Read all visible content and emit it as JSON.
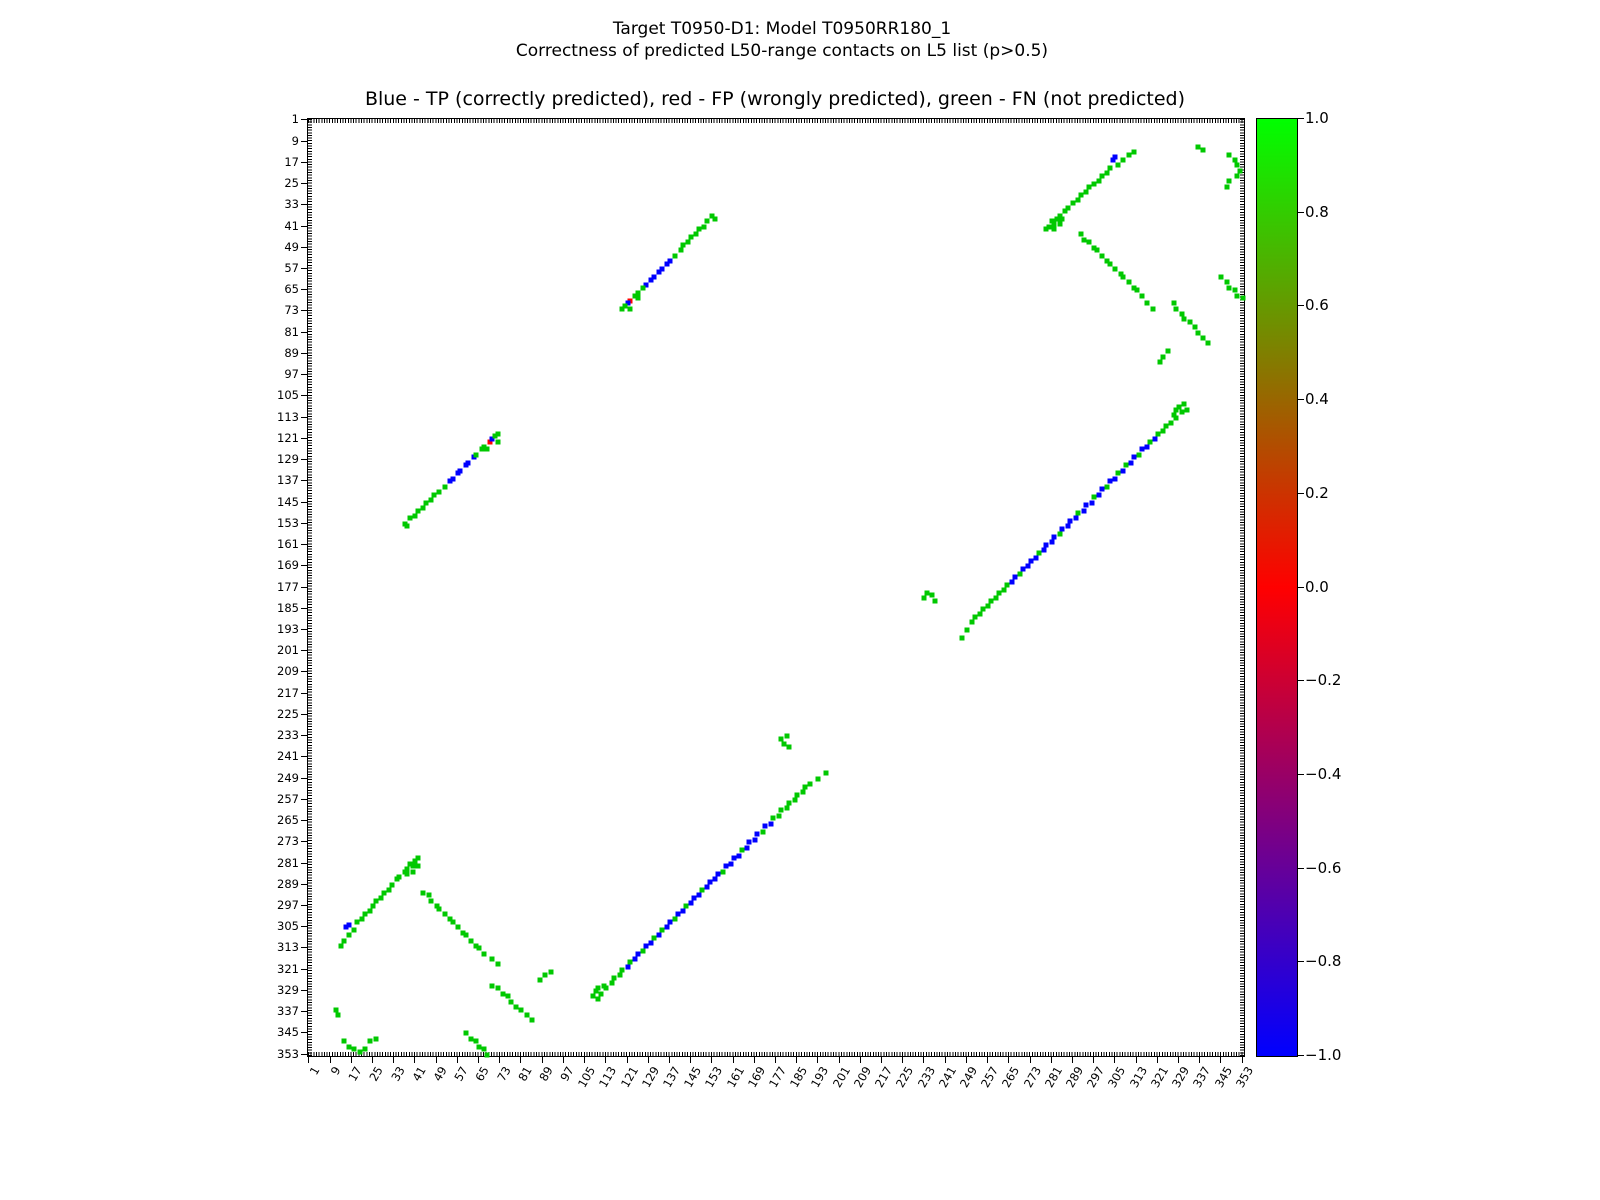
{
  "figure": {
    "suptitle_line1": "Target T0950-D1: Model T0950RR180_1",
    "suptitle_line2": "Correctness of predicted L50-range contacts on L5 list (p>0.5)",
    "axes_title": "Blue - TP (correctly predicted), red - FP (wrongly predicted), green - FN (not predicted)"
  },
  "chart_data": {
    "type": "scatter",
    "subtype": "contact_map",
    "title": "Blue - TP (correctly predicted), red - FP (wrongly predicted), green - FN (not predicted)",
    "xlabel": "",
    "ylabel": "",
    "x_range": [
      1,
      353
    ],
    "y_range": [
      1,
      353
    ],
    "y_inverted": true,
    "grid": false,
    "symmetric": true,
    "tick_values": [
      1,
      9,
      17,
      25,
      33,
      41,
      49,
      57,
      65,
      73,
      81,
      89,
      97,
      105,
      113,
      121,
      129,
      137,
      145,
      153,
      161,
      169,
      177,
      185,
      193,
      201,
      209,
      217,
      225,
      233,
      241,
      249,
      257,
      265,
      273,
      281,
      289,
      297,
      305,
      313,
      321,
      329,
      337,
      345,
      353
    ],
    "classes": {
      "TP": {
        "label": "TP (correctly predicted)",
        "color": "#0000ff"
      },
      "FP": {
        "label": "FP (wrongly predicted)",
        "color": "#ff0000"
      },
      "FN": {
        "label": "FN (not predicted)",
        "color": "#00c800"
      }
    },
    "colorbar": {
      "min": -1.0,
      "max": 1.0,
      "gradient_bottom": "#0000ff",
      "gradient_middle": "#ff0000",
      "gradient_top": "#00ff00",
      "tick_values": [
        1.0,
        0.8,
        0.6,
        0.4,
        0.2,
        0.0,
        -0.2,
        -0.4,
        -0.6,
        -0.8,
        -1.0
      ],
      "tick_labels": [
        "1.0",
        "0.8",
        "0.6",
        "0.4",
        "0.2",
        "0.0",
        "−0.2",
        "−0.4",
        "−0.6",
        "−0.8",
        "−1.0"
      ]
    },
    "points": [
      [
        37,
        153,
        "FN"
      ],
      [
        38,
        154,
        "FN"
      ],
      [
        39,
        151,
        "FN"
      ],
      [
        41,
        150,
        "FN"
      ],
      [
        42,
        148,
        "FN"
      ],
      [
        44,
        147,
        "FN"
      ],
      [
        45,
        145,
        "FN"
      ],
      [
        47,
        144,
        "FN"
      ],
      [
        48,
        142,
        "FN"
      ],
      [
        50,
        141,
        "FN"
      ],
      [
        52,
        139,
        "FN"
      ],
      [
        54,
        137,
        "TP"
      ],
      [
        55,
        136,
        "TP"
      ],
      [
        57,
        134,
        "TP"
      ],
      [
        58,
        133,
        "TP"
      ],
      [
        60,
        131,
        "TP"
      ],
      [
        61,
        130,
        "TP"
      ],
      [
        63,
        128,
        "TP"
      ],
      [
        64,
        127,
        "FN"
      ],
      [
        66,
        125,
        "FN"
      ],
      [
        67,
        124,
        "FN"
      ],
      [
        68,
        125,
        "FN"
      ],
      [
        69,
        122,
        "FP"
      ],
      [
        70,
        121,
        "TP"
      ],
      [
        71,
        120,
        "FN"
      ],
      [
        72,
        119,
        "FN"
      ],
      [
        72,
        122,
        "FN"
      ],
      [
        11,
        336,
        "FN"
      ],
      [
        12,
        338,
        "FN"
      ],
      [
        14,
        348,
        "FN"
      ],
      [
        16,
        350,
        "FN"
      ],
      [
        18,
        351,
        "FN"
      ],
      [
        20,
        352,
        "FN"
      ],
      [
        22,
        351,
        "FN"
      ],
      [
        24,
        348,
        "FN"
      ],
      [
        26,
        347,
        "FN"
      ],
      [
        13,
        312,
        "FN"
      ],
      [
        14,
        310,
        "FN"
      ],
      [
        15,
        305,
        "TP"
      ],
      [
        16,
        304,
        "TP"
      ],
      [
        16,
        308,
        "FN"
      ],
      [
        18,
        306,
        "FN"
      ],
      [
        19,
        303,
        "FN"
      ],
      [
        21,
        302,
        "FN"
      ],
      [
        22,
        300,
        "FN"
      ],
      [
        24,
        299,
        "FN"
      ],
      [
        25,
        297,
        "FN"
      ],
      [
        26,
        295,
        "FN"
      ],
      [
        28,
        294,
        "FN"
      ],
      [
        29,
        292,
        "FN"
      ],
      [
        31,
        291,
        "FN"
      ],
      [
        32,
        289,
        "FN"
      ],
      [
        34,
        287,
        "FN"
      ],
      [
        35,
        286,
        "FN"
      ],
      [
        37,
        284,
        "FN"
      ],
      [
        38,
        283,
        "FN"
      ],
      [
        39,
        281,
        "FN"
      ],
      [
        40,
        282,
        "FN"
      ],
      [
        41,
        280,
        "FN"
      ],
      [
        42,
        279,
        "FN"
      ],
      [
        40,
        284,
        "FN"
      ],
      [
        38,
        285,
        "FN"
      ],
      [
        42,
        282,
        "FN"
      ],
      [
        44,
        292,
        "FN"
      ],
      [
        46,
        293,
        "FN"
      ],
      [
        47,
        295,
        "FN"
      ],
      [
        49,
        297,
        "FN"
      ],
      [
        50,
        298,
        "FN"
      ],
      [
        52,
        300,
        "FN"
      ],
      [
        54,
        302,
        "FN"
      ],
      [
        55,
        303,
        "FN"
      ],
      [
        57,
        305,
        "FN"
      ],
      [
        59,
        307,
        "FN"
      ],
      [
        60,
        308,
        "FN"
      ],
      [
        62,
        310,
        "FN"
      ],
      [
        64,
        312,
        "FN"
      ],
      [
        65,
        313,
        "FN"
      ],
      [
        67,
        315,
        "FN"
      ],
      [
        70,
        317,
        "FN"
      ],
      [
        72,
        319,
        "FN"
      ],
      [
        60,
        345,
        "FN"
      ],
      [
        62,
        347,
        "FN"
      ],
      [
        64,
        348,
        "FN"
      ],
      [
        65,
        350,
        "FN"
      ],
      [
        67,
        351,
        "FN"
      ],
      [
        68,
        353,
        "FN"
      ],
      [
        70,
        327,
        "FN"
      ],
      [
        72,
        328,
        "FN"
      ],
      [
        74,
        330,
        "FN"
      ],
      [
        76,
        331,
        "FN"
      ],
      [
        77,
        333,
        "FN"
      ],
      [
        79,
        335,
        "FN"
      ],
      [
        81,
        336,
        "FN"
      ],
      [
        83,
        338,
        "FN"
      ],
      [
        85,
        340,
        "FN"
      ],
      [
        88,
        325,
        "FN"
      ],
      [
        90,
        323,
        "FN"
      ],
      [
        92,
        322,
        "FN"
      ],
      [
        108,
        331,
        "FN"
      ],
      [
        109,
        329,
        "FN"
      ],
      [
        110,
        332,
        "FN"
      ],
      [
        110,
        328,
        "FN"
      ],
      [
        111,
        330,
        "FN"
      ],
      [
        112,
        327,
        "FN"
      ],
      [
        113,
        328,
        "FN"
      ],
      [
        115,
        326,
        "FN"
      ],
      [
        116,
        324,
        "FN"
      ],
      [
        118,
        323,
        "FN"
      ],
      [
        119,
        321,
        "FN"
      ],
      [
        121,
        320,
        "TP"
      ],
      [
        122,
        318,
        "FN"
      ],
      [
        124,
        317,
        "TP"
      ],
      [
        125,
        315,
        "TP"
      ],
      [
        127,
        314,
        "FN"
      ],
      [
        128,
        312,
        "TP"
      ],
      [
        130,
        311,
        "TP"
      ],
      [
        131,
        309,
        "FN"
      ],
      [
        133,
        308,
        "TP"
      ],
      [
        134,
        306,
        "FN"
      ],
      [
        136,
        305,
        "TP"
      ],
      [
        137,
        303,
        "TP"
      ],
      [
        139,
        302,
        "FN"
      ],
      [
        140,
        300,
        "TP"
      ],
      [
        142,
        299,
        "TP"
      ],
      [
        143,
        297,
        "FN"
      ],
      [
        145,
        296,
        "TP"
      ],
      [
        146,
        294,
        "TP"
      ],
      [
        148,
        293,
        "TP"
      ],
      [
        149,
        291,
        "FN"
      ],
      [
        151,
        290,
        "TP"
      ],
      [
        152,
        288,
        "TP"
      ],
      [
        154,
        287,
        "TP"
      ],
      [
        155,
        285,
        "TP"
      ],
      [
        157,
        284,
        "FN"
      ],
      [
        158,
        282,
        "TP"
      ],
      [
        160,
        281,
        "TP"
      ],
      [
        161,
        279,
        "TP"
      ],
      [
        163,
        278,
        "TP"
      ],
      [
        164,
        276,
        "FN"
      ],
      [
        166,
        275,
        "TP"
      ],
      [
        167,
        273,
        "TP"
      ],
      [
        169,
        272,
        "TP"
      ],
      [
        170,
        270,
        "TP"
      ],
      [
        172,
        269,
        "FN"
      ],
      [
        173,
        267,
        "TP"
      ],
      [
        175,
        266,
        "TP"
      ],
      [
        176,
        264,
        "FN"
      ],
      [
        178,
        263,
        "FN"
      ],
      [
        179,
        261,
        "FN"
      ],
      [
        181,
        260,
        "FN"
      ],
      [
        182,
        258,
        "FN"
      ],
      [
        184,
        257,
        "FN"
      ],
      [
        185,
        255,
        "FN"
      ],
      [
        187,
        254,
        "FN"
      ],
      [
        188,
        252,
        "FN"
      ],
      [
        190,
        251,
        "FN"
      ],
      [
        179,
        234,
        "FN"
      ],
      [
        180,
        236,
        "FN"
      ],
      [
        181,
        233,
        "FN"
      ],
      [
        182,
        237,
        "FN"
      ],
      [
        193,
        249,
        "FN"
      ],
      [
        196,
        247,
        "FN"
      ]
    ]
  }
}
